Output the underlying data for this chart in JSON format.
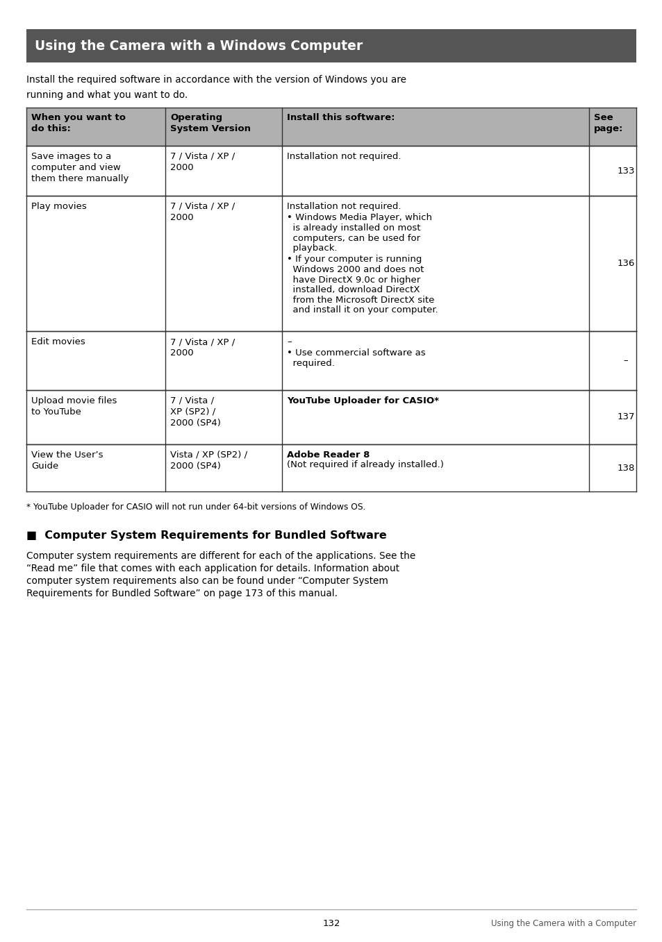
{
  "page_bg": "#ffffff",
  "header_bg": "#555555",
  "header_text": "Using the Camera with a Windows Computer",
  "header_text_color": "#ffffff",
  "table_header_bg": "#b0b0b0",
  "table_border_color": "#333333",
  "intro_line1": "Install the required software in accordance with the version of Windows you are",
  "intro_line2": "running and what you want to do.",
  "col_headers": [
    "When you want to\ndo this:",
    "Operating\nSystem Version",
    "Install this software:",
    "See\npage:"
  ],
  "rows": [
    {
      "col1": "Save images to a\ncomputer and view\nthem there manually",
      "col2": "7 / Vista / XP /\n2000",
      "col3_parts": [
        [
          "Installation not required.",
          false
        ]
      ],
      "col4": "133"
    },
    {
      "col1": "Play movies",
      "col2": "7 / Vista / XP /\n2000",
      "col3_parts": [
        [
          "Installation not required.",
          false
        ],
        [
          "• Windows Media Player, which\n  is already installed on most\n  computers, can be used for\n  playback.",
          false
        ],
        [
          "• If your computer is running\n  Windows 2000 and does not\n  have DirectX 9.0c or higher\n  installed, download DirectX\n  from the Microsoft DirectX site\n  and install it on your computer.",
          false
        ]
      ],
      "col4": "136"
    },
    {
      "col1": "Edit movies",
      "col2": "7 / Vista / XP /\n2000",
      "col3_parts": [
        [
          "–",
          false
        ],
        [
          "• Use commercial software as\n  required.",
          false
        ]
      ],
      "col4": "–"
    },
    {
      "col1": "Upload movie files\nto YouTube",
      "col2": "7 / Vista /\nXP (SP2) /\n2000 (SP4)",
      "col3_parts": [
        [
          "YouTube Uploader for CASIO*",
          true
        ]
      ],
      "col4": "137"
    },
    {
      "col1": "View the User’s\nGuide",
      "col2": "Vista / XP (SP2) /\n2000 (SP4)",
      "col3_parts": [
        [
          "Adobe Reader 8",
          true
        ],
        [
          "(Not required if already installed.)",
          false
        ]
      ],
      "col4": "138"
    }
  ],
  "footnote": "* YouTube Uploader for CASIO will not run under 64-bit versions of Windows OS.",
  "section_title": "■  Computer System Requirements for Bundled Software",
  "section_body_lines": [
    "Computer system requirements are different for each of the applications. See the",
    "“Read me” file that comes with each application for details. Information about",
    "computer system requirements also can be found under “Computer System",
    "Requirements for Bundled Software” on page 173 of this manual."
  ],
  "footer_page": "132",
  "footer_right": "Using the Camera with a Computer"
}
